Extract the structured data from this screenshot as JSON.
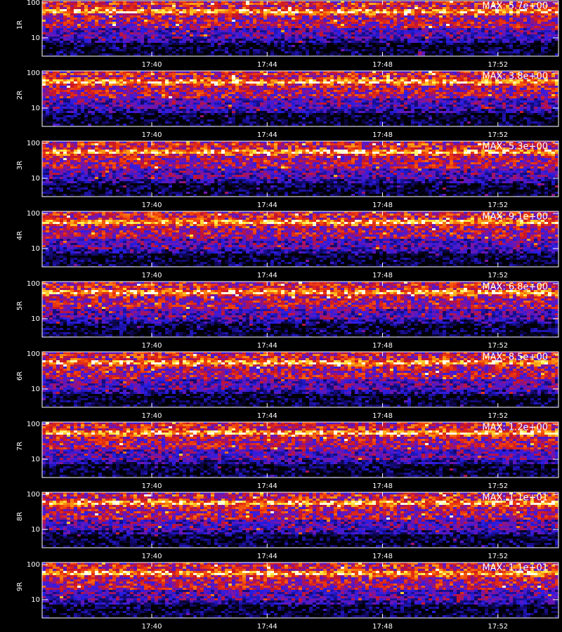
{
  "chart_data": [
    {
      "type": "heatmap",
      "ylabel": "1R",
      "annotation": "MAX: 5.7e+00",
      "log_y": true,
      "xlim": [
        36.2,
        54.1
      ],
      "xticks": [
        {
          "value": 40,
          "label": "17:40"
        },
        {
          "value": 44,
          "label": "17:44"
        },
        {
          "value": 48,
          "label": "17:48"
        },
        {
          "value": 52,
          "label": "17:52"
        }
      ],
      "ylim": [
        3,
        115
      ],
      "yticks": [
        10,
        100
      ]
    },
    {
      "type": "heatmap",
      "ylabel": "2R",
      "annotation": "MAX: 3.8e+00",
      "log_y": true,
      "xlim": [
        36.2,
        54.1
      ],
      "xticks": [
        {
          "value": 40,
          "label": "17:40"
        },
        {
          "value": 44,
          "label": "17:44"
        },
        {
          "value": 48,
          "label": "17:48"
        },
        {
          "value": 52,
          "label": "17:52"
        }
      ],
      "ylim": [
        3,
        115
      ],
      "yticks": [
        10,
        100
      ]
    },
    {
      "type": "heatmap",
      "ylabel": "3R",
      "annotation": "MAX: 5.3e+00",
      "log_y": true,
      "xlim": [
        36.2,
        54.1
      ],
      "xticks": [
        {
          "value": 40,
          "label": "17:40"
        },
        {
          "value": 44,
          "label": "17:44"
        },
        {
          "value": 48,
          "label": "17:48"
        },
        {
          "value": 52,
          "label": "17:52"
        }
      ],
      "ylim": [
        3,
        115
      ],
      "yticks": [
        10,
        100
      ]
    },
    {
      "type": "heatmap",
      "ylabel": "4R",
      "annotation": "MAX: 9.1e+00",
      "log_y": true,
      "xlim": [
        36.2,
        54.1
      ],
      "xticks": [
        {
          "value": 40,
          "label": "17:40"
        },
        {
          "value": 44,
          "label": "17:44"
        },
        {
          "value": 48,
          "label": "17:48"
        },
        {
          "value": 52,
          "label": "17:52"
        }
      ],
      "ylim": [
        3,
        115
      ],
      "yticks": [
        10,
        100
      ]
    },
    {
      "type": "heatmap",
      "ylabel": "5R",
      "annotation": "MAX: 6.8e+00",
      "log_y": true,
      "xlim": [
        36.2,
        54.1
      ],
      "xticks": [
        {
          "value": 40,
          "label": "17:40"
        },
        {
          "value": 44,
          "label": "17:44"
        },
        {
          "value": 48,
          "label": "17:48"
        },
        {
          "value": 52,
          "label": "17:52"
        }
      ],
      "ylim": [
        3,
        115
      ],
      "yticks": [
        10,
        100
      ]
    },
    {
      "type": "heatmap",
      "ylabel": "6R",
      "annotation": "MAX: 8.5e+00",
      "log_y": true,
      "xlim": [
        36.2,
        54.1
      ],
      "xticks": [
        {
          "value": 40,
          "label": "17:40"
        },
        {
          "value": 44,
          "label": "17:44"
        },
        {
          "value": 48,
          "label": "17:48"
        },
        {
          "value": 52,
          "label": "17:52"
        }
      ],
      "ylim": [
        3,
        115
      ],
      "yticks": [
        10,
        100
      ]
    },
    {
      "type": "heatmap",
      "ylabel": "7R",
      "annotation": "MAX: 1.2e+00",
      "log_y": true,
      "xlim": [
        36.2,
        54.1
      ],
      "xticks": [
        {
          "value": 40,
          "label": "17:40"
        },
        {
          "value": 44,
          "label": "17:44"
        },
        {
          "value": 48,
          "label": "17:48"
        },
        {
          "value": 52,
          "label": "17:52"
        }
      ],
      "ylim": [
        3,
        115
      ],
      "yticks": [
        10,
        100
      ]
    },
    {
      "type": "heatmap",
      "ylabel": "8R",
      "annotation": "MAX: 1.1e+01",
      "log_y": true,
      "xlim": [
        36.2,
        54.1
      ],
      "xticks": [
        {
          "value": 40,
          "label": "17:40"
        },
        {
          "value": 44,
          "label": "17:44"
        },
        {
          "value": 48,
          "label": "17:48"
        },
        {
          "value": 52,
          "label": "17:52"
        }
      ],
      "ylim": [
        3,
        115
      ],
      "yticks": [
        10,
        100
      ]
    },
    {
      "type": "heatmap",
      "ylabel": "9R",
      "annotation": "MAX: 1.1e+01",
      "log_y": true,
      "xlim": [
        36.2,
        54.1
      ],
      "xticks": [
        {
          "value": 40,
          "label": "17:40"
        },
        {
          "value": 44,
          "label": "17:44"
        },
        {
          "value": 48,
          "label": "17:48"
        },
        {
          "value": 52,
          "label": "17:52"
        }
      ],
      "ylim": [
        3,
        115
      ],
      "yticks": [
        10,
        100
      ]
    }
  ]
}
